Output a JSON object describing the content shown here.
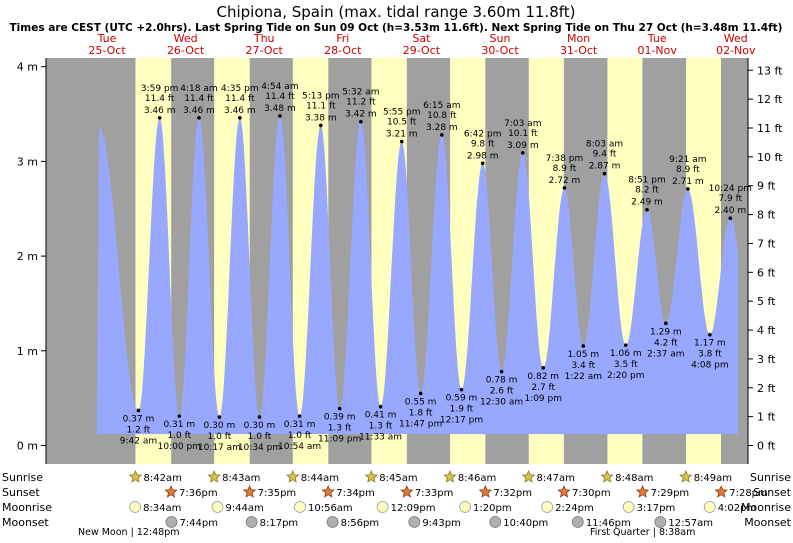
{
  "chart_data": {
    "type": "area",
    "title": "Chipiona, Spain (max. tidal range 3.60m 11.8ft)",
    "subtitle": "Times are CEST (UTC +2.0hrs). Last Spring Tide on Sun 09 Oct (h=3.53m 11.6ft). Next Spring Tide on Thu 27 Oct (h=3.48m 11.4ft)",
    "ylabel_left": "m",
    "ylabel_right": "ft",
    "ylim_m": [
      -0.2,
      4.2
    ],
    "left_ticks": [
      {
        "value": 0,
        "label": "0 m"
      },
      {
        "value": 1,
        "label": "1 m"
      },
      {
        "value": 2,
        "label": "2 m"
      },
      {
        "value": 3,
        "label": "3 m"
      },
      {
        "value": 4,
        "label": "4 m"
      }
    ],
    "right_ticks": [
      {
        "value": 0,
        "label": "0 ft"
      },
      {
        "value": 1,
        "label": "1 ft"
      },
      {
        "value": 2,
        "label": "2 ft"
      },
      {
        "value": 3,
        "label": "3 ft"
      },
      {
        "value": 4,
        "label": "4 ft"
      },
      {
        "value": 5,
        "label": "5 ft"
      },
      {
        "value": 6,
        "label": "6 ft"
      },
      {
        "value": 7,
        "label": "7 ft"
      },
      {
        "value": 8,
        "label": "8 ft"
      },
      {
        "value": 9,
        "label": "9 ft"
      },
      {
        "value": 10,
        "label": "10 ft"
      },
      {
        "value": 11,
        "label": "11 ft"
      },
      {
        "value": 12,
        "label": "12 ft"
      },
      {
        "value": 13,
        "label": "13 ft"
      }
    ],
    "x_range_days": [
      -0.6,
      8.0
    ],
    "days": [
      {
        "weekday": "Tue",
        "date": "25-Oct",
        "sunrise_h": 8.7,
        "sunset_h": 19.6
      },
      {
        "weekday": "Wed",
        "date": "26-Oct",
        "sunrise_h": 8.72,
        "sunset_h": 19.58
      },
      {
        "weekday": "Thu",
        "date": "27-Oct",
        "sunrise_h": 8.73,
        "sunset_h": 19.57
      },
      {
        "weekday": "Fri",
        "date": "28-Oct",
        "sunrise_h": 8.75,
        "sunset_h": 19.55
      },
      {
        "weekday": "Sat",
        "date": "29-Oct",
        "sunrise_h": 8.77,
        "sunset_h": 19.53
      },
      {
        "weekday": "Sun",
        "date": "30-Oct",
        "sunrise_h": 8.78,
        "sunset_h": 19.5
      },
      {
        "weekday": "Mon",
        "date": "31-Oct",
        "sunrise_h": 8.8,
        "sunset_h": 19.48
      },
      {
        "weekday": "Tue",
        "date": "01-Nov",
        "sunrise_h": 8.82,
        "sunset_h": 19.47
      },
      {
        "weekday": "Wed",
        "date": "02-Nov",
        "sunrise_h": 8.83,
        "sunset_h": 19.47
      }
    ],
    "tides": [
      {
        "type": "high",
        "day": -0.1,
        "m": 3.35,
        "ft": "",
        "time": ""
      },
      {
        "type": "low",
        "day": 0.4,
        "m": 0.37,
        "ft": "1.2 ft",
        "time": "9:42 am"
      },
      {
        "type": "high",
        "day": 0.67,
        "m": 3.46,
        "ft": "11.4 ft",
        "time": "3:59 pm"
      },
      {
        "type": "low",
        "day": 0.92,
        "m": 0.31,
        "ft": "1.0 ft",
        "time": "10:00 pm"
      },
      {
        "type": "high",
        "day": 1.17,
        "m": 3.46,
        "ft": "11.4 ft",
        "time": "4:18 am"
      },
      {
        "type": "low",
        "day": 1.43,
        "m": 0.3,
        "ft": "1.0 ft",
        "time": "10:17 am"
      },
      {
        "type": "high",
        "day": 1.69,
        "m": 3.46,
        "ft": "11.4 ft",
        "time": "4:35 pm"
      },
      {
        "type": "low",
        "day": 1.94,
        "m": 0.3,
        "ft": "1.0 ft",
        "time": "10:34 pm"
      },
      {
        "type": "high",
        "day": 2.2,
        "m": 3.48,
        "ft": "11.4 ft",
        "time": "4:54 am"
      },
      {
        "type": "low",
        "day": 2.45,
        "m": 0.31,
        "ft": "1.0 ft",
        "time": "10:54 am"
      },
      {
        "type": "high",
        "day": 2.72,
        "m": 3.38,
        "ft": "11.1 ft",
        "time": "5:13 pm"
      },
      {
        "type": "low",
        "day": 2.96,
        "m": 0.39,
        "ft": "1.3 ft",
        "time": "11:09 pm"
      },
      {
        "type": "high",
        "day": 3.23,
        "m": 3.42,
        "ft": "11.2 ft",
        "time": "5:32 am"
      },
      {
        "type": "low",
        "day": 3.48,
        "m": 0.41,
        "ft": "1.3 ft",
        "time": "11:33 am"
      },
      {
        "type": "high",
        "day": 3.75,
        "m": 3.21,
        "ft": "10.5 ft",
        "time": "5:55 pm"
      },
      {
        "type": "low",
        "day": 3.99,
        "m": 0.55,
        "ft": "1.8 ft",
        "time": "11:47 pm"
      },
      {
        "type": "high",
        "day": 4.26,
        "m": 3.28,
        "ft": "10.8 ft",
        "time": "6:15 am"
      },
      {
        "type": "low",
        "day": 4.51,
        "m": 0.59,
        "ft": "1.9 ft",
        "time": "12:17 pm"
      },
      {
        "type": "high",
        "day": 4.78,
        "m": 2.98,
        "ft": "9.8 ft",
        "time": "6:42 pm"
      },
      {
        "type": "low",
        "day": 5.02,
        "m": 0.78,
        "ft": "2.6 ft",
        "time": "12:30 am"
      },
      {
        "type": "high",
        "day": 5.29,
        "m": 3.09,
        "ft": "10.1 ft",
        "time": "7:03 am"
      },
      {
        "type": "low",
        "day": 5.55,
        "m": 0.82,
        "ft": "2.7 ft",
        "time": "1:09 pm"
      },
      {
        "type": "high",
        "day": 5.82,
        "m": 2.72,
        "ft": "8.9 ft",
        "time": "7:38 pm"
      },
      {
        "type": "low",
        "day": 6.06,
        "m": 1.05,
        "ft": "3.4 ft",
        "time": "1:22 am"
      },
      {
        "type": "high",
        "day": 6.33,
        "m": 2.87,
        "ft": "9.4 ft",
        "time": "8:03 am"
      },
      {
        "type": "low",
        "day": 6.6,
        "m": 1.06,
        "ft": "3.5 ft",
        "time": "2:20 pm"
      },
      {
        "type": "high",
        "day": 6.87,
        "m": 2.49,
        "ft": "8.2 ft",
        "time": "8:51 pm"
      },
      {
        "type": "low",
        "day": 7.11,
        "m": 1.29,
        "ft": "4.2 ft",
        "time": "2:37 am"
      },
      {
        "type": "high",
        "day": 7.39,
        "m": 2.71,
        "ft": "8.9 ft",
        "time": "9:21 am"
      },
      {
        "type": "low",
        "day": 7.67,
        "m": 1.17,
        "ft": "3.8 ft",
        "time": "4:08 pm"
      },
      {
        "type": "high",
        "day": 7.93,
        "m": 2.4,
        "ft": "7.9 ft",
        "time": "10:24 pm"
      }
    ],
    "astro_rows": {
      "sunrise": {
        "label": "Sunrise",
        "times": [
          "8:42am",
          "8:43am",
          "8:44am",
          "8:45am",
          "8:46am",
          "8:47am",
          "8:48am",
          "8:49am"
        ]
      },
      "sunset": {
        "label": "Sunset",
        "times": [
          "7:36pm",
          "7:35pm",
          "7:34pm",
          "7:33pm",
          "7:32pm",
          "7:30pm",
          "7:29pm",
          "7:28pm"
        ]
      },
      "moonrise": {
        "label": "Moonrise",
        "times": [
          "8:34am",
          "9:44am",
          "10:56am",
          "12:09pm",
          "1:20pm",
          "2:24pm",
          "3:17pm",
          "4:02pm"
        ]
      },
      "moonset": {
        "label": "Moonset",
        "times": [
          "7:44pm",
          "8:17pm",
          "8:56pm",
          "9:43pm",
          "10:40pm",
          "11:46pm",
          "12:57am"
        ]
      }
    },
    "moon_phases": [
      {
        "label": "New Moon",
        "time": "12:48pm"
      },
      {
        "label": "First Quarter",
        "time": "8:38am"
      }
    ]
  }
}
